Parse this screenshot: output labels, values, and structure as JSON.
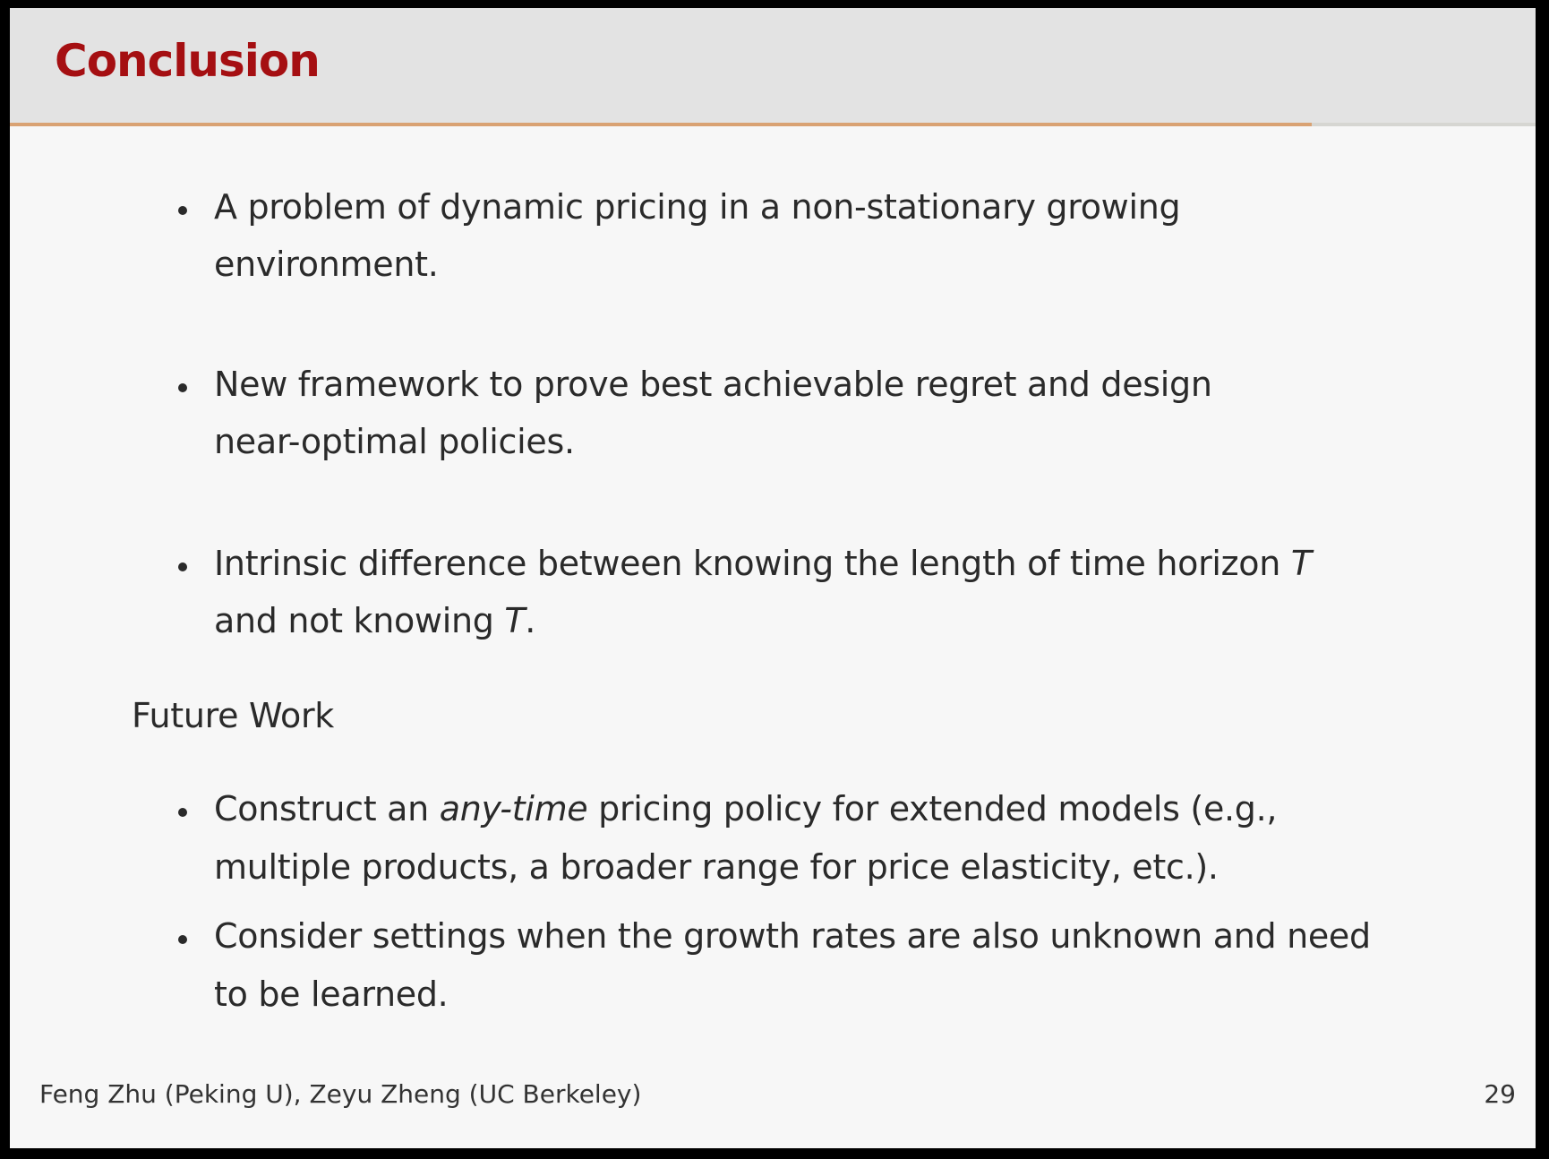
{
  "title": "Conclusion",
  "colors": {
    "title": "#a50f12",
    "header_bg": "#e3e3e3",
    "rule": "#d9a273",
    "slide_bg": "#f7f7f7"
  },
  "bullets": [
    {
      "lines": [
        "A problem of dynamic pricing in a non-stationary growing",
        "environment."
      ]
    },
    {
      "lines": [
        "New framework to prove best achievable regret and design",
        "near-optimal policies."
      ]
    },
    {
      "line1_pre": "Intrinsic difference between knowing the length of time horizon ",
      "var": "T",
      "line2_pre": "and not knowing ",
      "line2_post": "."
    }
  ],
  "future_work": {
    "heading": "Future Work",
    "bullets": [
      {
        "line1_pre": "Construct an ",
        "line1_em": "any-time",
        "line1_post": " pricing policy for extended models (e.g.,",
        "line2": "multiple products, a broader range for price elasticity, etc.)."
      },
      {
        "lines": [
          "Consider settings when the growth rates are also unknown and need",
          "to be learned."
        ]
      }
    ]
  },
  "footer": {
    "authors": "Feng Zhu (Peking U), Zeyu Zheng (UC Berkeley)",
    "page": "29"
  }
}
